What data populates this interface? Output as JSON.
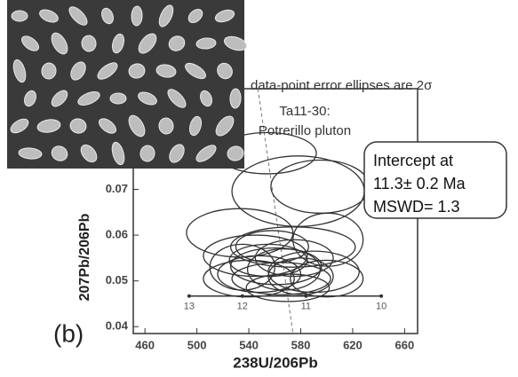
{
  "chart_data": {
    "type": "ellipse",
    "subtitle": "data-point error ellipses are 2σ",
    "annotations": [
      "Ta11-30:",
      "Potrerillo pluton"
    ],
    "result_box": [
      "Intercept at",
      "11.3± 0.2 Ma",
      "MSWD= 1.3"
    ],
    "panel_label": "(b)",
    "x_label": "238U/206Pb",
    "y_label": "207Pb/206Pb",
    "xlim": [
      451,
      670
    ],
    "ylim": [
      0.0385,
      0.092
    ],
    "xticks": [
      460,
      500,
      540,
      580,
      620,
      660
    ],
    "yticks": [
      0.04,
      0.05,
      0.06,
      0.07
    ],
    "ellipses": {
      "color": "#333333",
      "x": [
        554,
        578,
        595,
        533,
        601,
        574,
        561,
        555,
        567,
        548,
        575,
        545,
        565,
        580,
        540,
        590,
        600,
        558,
        535,
        570
      ],
      "y": [
        0.0779,
        0.0696,
        0.0706,
        0.0605,
        0.059,
        0.0574,
        0.0532,
        0.0545,
        0.0525,
        0.0515,
        0.055,
        0.0555,
        0.0505,
        0.051,
        0.0505,
        0.052,
        0.0505,
        0.0575,
        0.053,
        0.0485
      ],
      "x_err": [
        38,
        51,
        38,
        41,
        27,
        48,
        35,
        30,
        28,
        32,
        30,
        40,
        38,
        25,
        35,
        35,
        28,
        28,
        25,
        32
      ],
      "y_err": [
        0.0045,
        0.0077,
        0.0058,
        0.0053,
        0.0058,
        0.0044,
        0.004,
        0.0035,
        0.0045,
        0.004,
        0.004,
        0.0045,
        0.0035,
        0.004,
        0.004,
        0.0045,
        0.004,
        0.0035,
        0.005,
        0.003
      ]
    },
    "concordia": {
      "color": "#333333",
      "x": [
        494,
        535,
        584,
        642
      ],
      "y": [
        0.0467,
        0.0467,
        0.0467,
        0.0467
      ],
      "ages": [
        13,
        12,
        11,
        10
      ]
    },
    "discordia": {
      "color": "#777777",
      "x": [
        547,
        574
      ],
      "y": [
        0.092,
        0.0385
      ]
    }
  }
}
